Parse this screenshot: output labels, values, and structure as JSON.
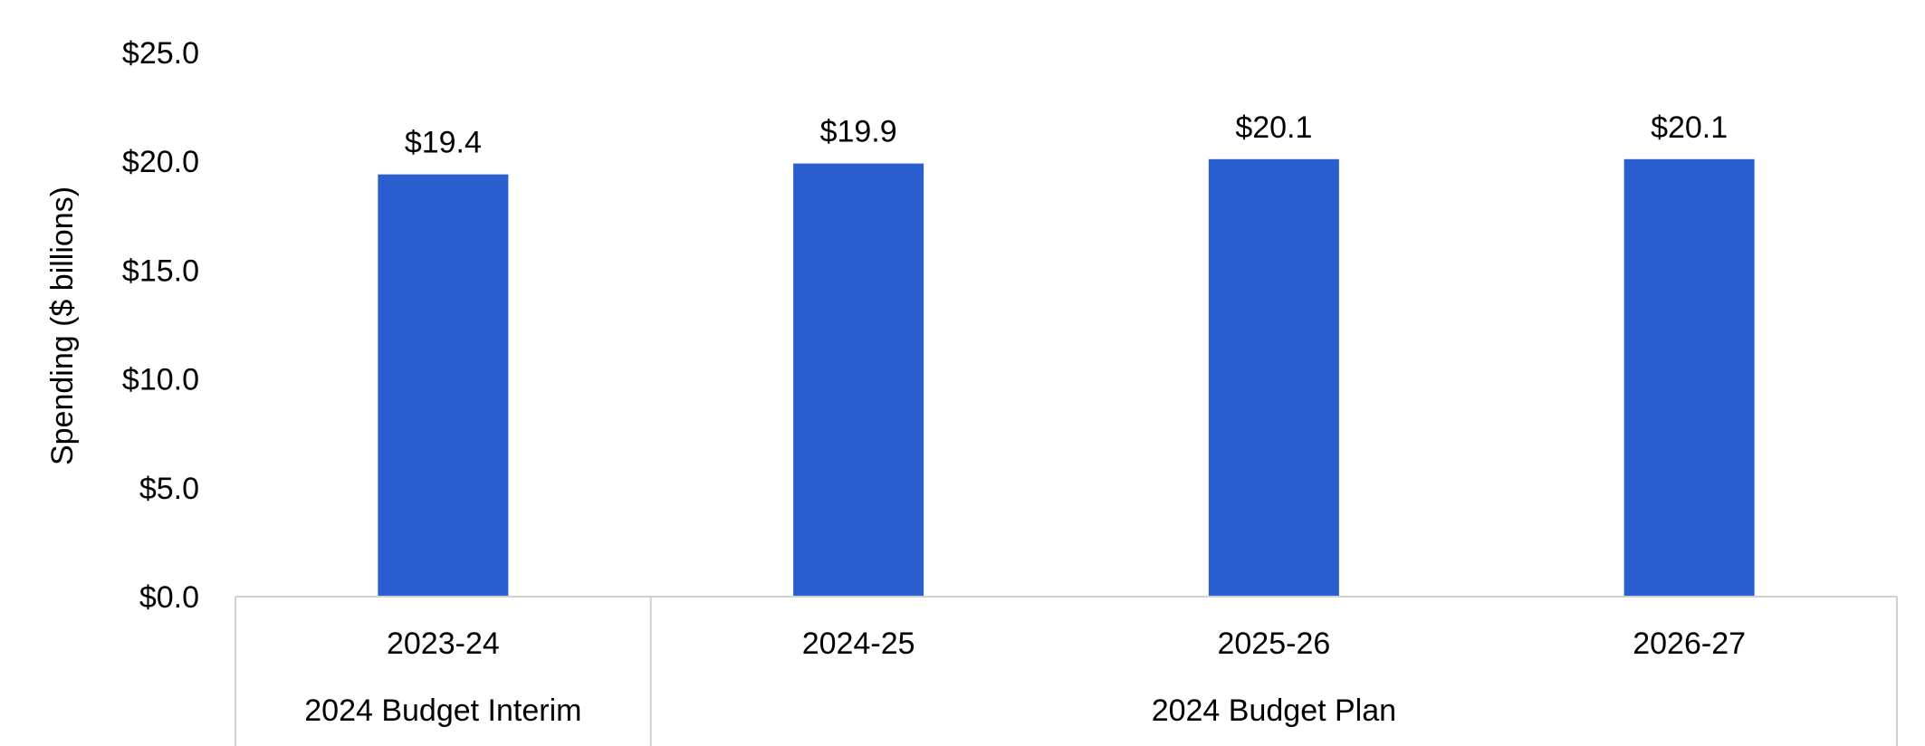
{
  "chart_data": {
    "type": "bar",
    "title": "",
    "xlabel": "",
    "ylabel": "Spending ($ billions)",
    "ylim": [
      0,
      25
    ],
    "yticks": [
      0,
      5,
      10,
      15,
      20,
      25
    ],
    "ytick_labels": [
      "$0.0",
      "$5.0",
      "$10.0",
      "$15.0",
      "$20.0",
      "$25.0"
    ],
    "grid": false,
    "legend": "none",
    "bar_color": "#2B5FD0",
    "categories": [
      "2023-24",
      "2024-25",
      "2025-26",
      "2026-27"
    ],
    "values": [
      19.4,
      19.9,
      20.1,
      20.1
    ],
    "data_labels": [
      "$19.4",
      "$19.9",
      "$20.1",
      "$20.1"
    ],
    "groups": [
      {
        "label": "2024 Budget Interim",
        "categories": [
          "2023-24"
        ]
      },
      {
        "label": "2024 Budget Plan",
        "categories": [
          "2024-25",
          "2025-26",
          "2026-27"
        ]
      }
    ]
  }
}
